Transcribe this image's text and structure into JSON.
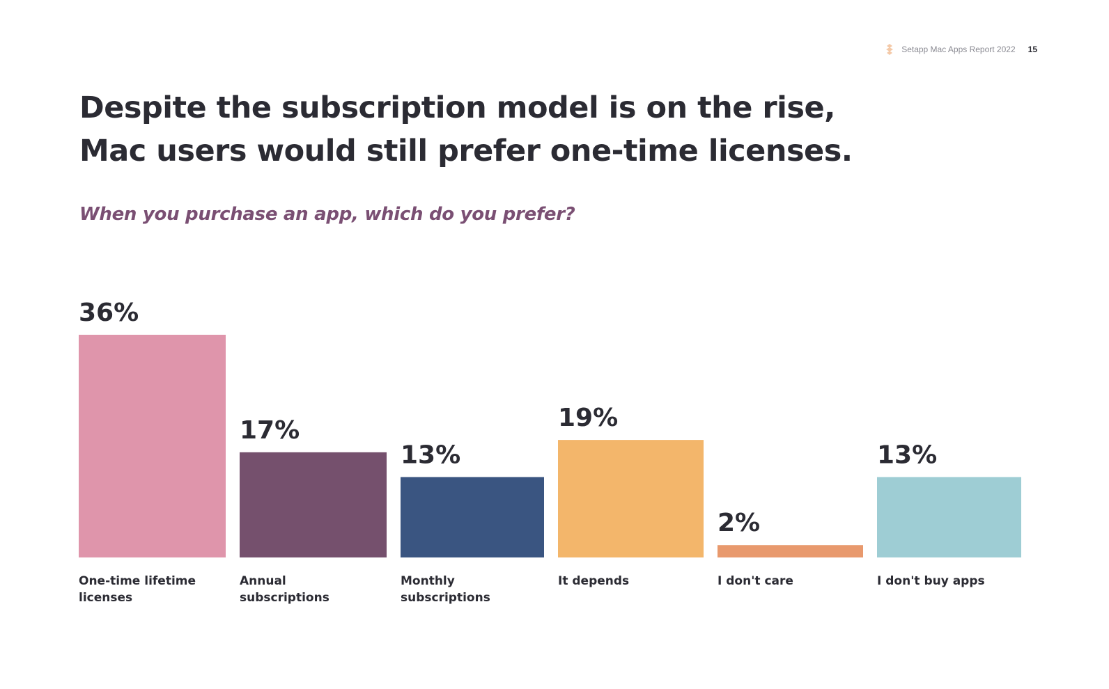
{
  "header": {
    "report_title": "Setapp Mac Apps Report 2022",
    "page_number": "15",
    "logo_color": "#f4c9a8"
  },
  "title": {
    "line1": "Despite the subscription model is on the rise,",
    "line2": "Mac users would still prefer one-time licenses."
  },
  "question": "When you purchase an app, which do you prefer?",
  "chart_data": {
    "type": "bar",
    "categories": [
      [
        "One-time lifetime",
        "licenses"
      ],
      [
        "Annual",
        "subscriptions"
      ],
      [
        "Monthly",
        "subscriptions"
      ],
      [
        "It depends"
      ],
      [
        "I don't care"
      ],
      [
        "I don't buy apps"
      ]
    ],
    "values": [
      36,
      17,
      13,
      19,
      2,
      13
    ],
    "value_labels": [
      "36%",
      "17%",
      "13%",
      "19%",
      "2%",
      "13%"
    ],
    "colors": [
      "#df95ab",
      "#75506d",
      "#3a5581",
      "#f3b66b",
      "#e8996d",
      "#9ecdd4"
    ],
    "ylim": [
      0,
      36
    ],
    "grid": false
  }
}
